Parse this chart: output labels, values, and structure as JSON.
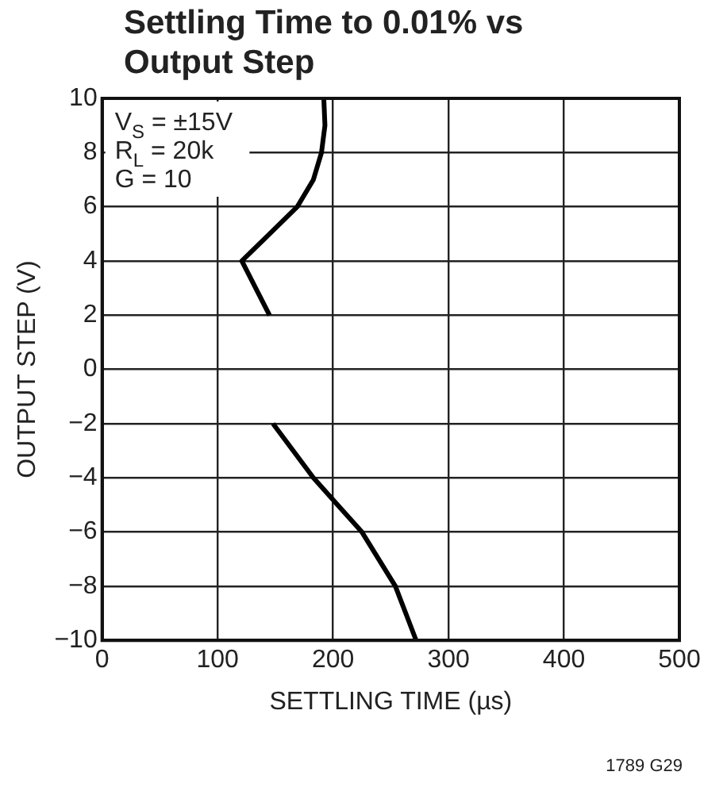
{
  "chart_data": {
    "type": "line",
    "title": "Settling Time to 0.01% vs Output Step",
    "xlabel": "SETTLING TIME (µs)",
    "ylabel": "OUTPUT STEP (V)",
    "xlim": [
      0,
      500
    ],
    "xticks": [
      0,
      100,
      200,
      300,
      400,
      500
    ],
    "ylim": [
      -10,
      10
    ],
    "yticks": [
      -10,
      -8,
      -6,
      -4,
      -2,
      0,
      2,
      4,
      6,
      8,
      10
    ],
    "grid": true,
    "legend": false,
    "marker": "none",
    "line_style": "solid",
    "series": [
      {
        "color": "#000000",
        "x": [
          145,
          121,
          145,
          169,
          183,
          190,
          193,
          192
        ],
        "values": [
          2,
          4,
          5,
          6,
          7,
          8,
          9,
          10
        ]
      },
      {
        "color": "#000000",
        "x": [
          148,
          183,
          204,
          225,
          254,
          263,
          272
        ],
        "values": [
          -2,
          -4,
          -5,
          -6,
          -8,
          -9,
          -10
        ]
      }
    ],
    "annotations": [
      "V$_{S}$ = ±15V",
      "R$_{L}$ = 20k",
      "G = 10",
      "1789 G29"
    ]
  }
}
